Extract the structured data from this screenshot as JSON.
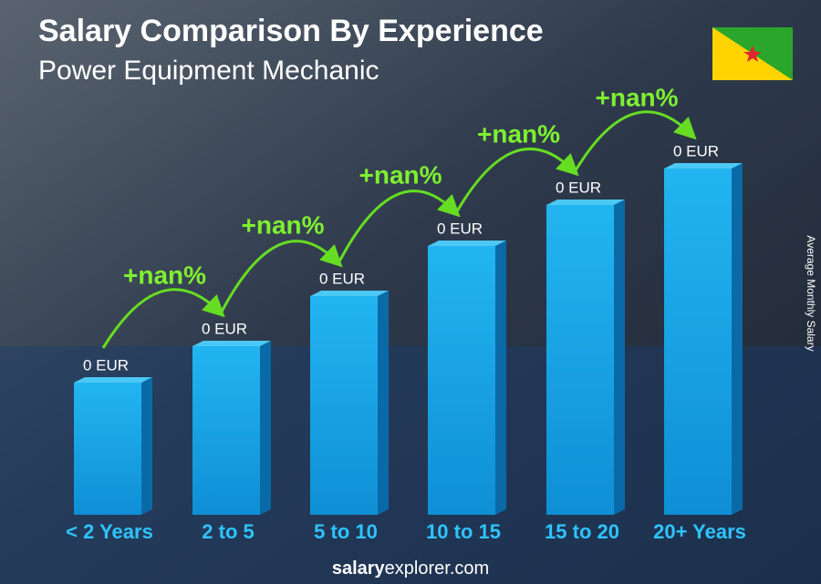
{
  "title": "Salary Comparison By Experience",
  "subtitle": "Power Equipment Mechanic",
  "y_axis_label": "Average Monthly Salary",
  "bars": [
    {
      "category": "< 2 Years",
      "value_label": "0 EUR"
    },
    {
      "category": "2 to 5",
      "value_label": "0 EUR"
    },
    {
      "category": "5 to 10",
      "value_label": "0 EUR"
    },
    {
      "category": "10 to 15",
      "value_label": "0 EUR"
    },
    {
      "category": "15 to 20",
      "value_label": "0 EUR"
    },
    {
      "category": "20+ Years",
      "value_label": "0 EUR"
    }
  ],
  "changes": [
    "+nan%",
    "+nan%",
    "+nan%",
    "+nan%",
    "+nan%"
  ],
  "footer": {
    "brand_bold": "salary",
    "brand_rest": "explorer.com"
  }
}
